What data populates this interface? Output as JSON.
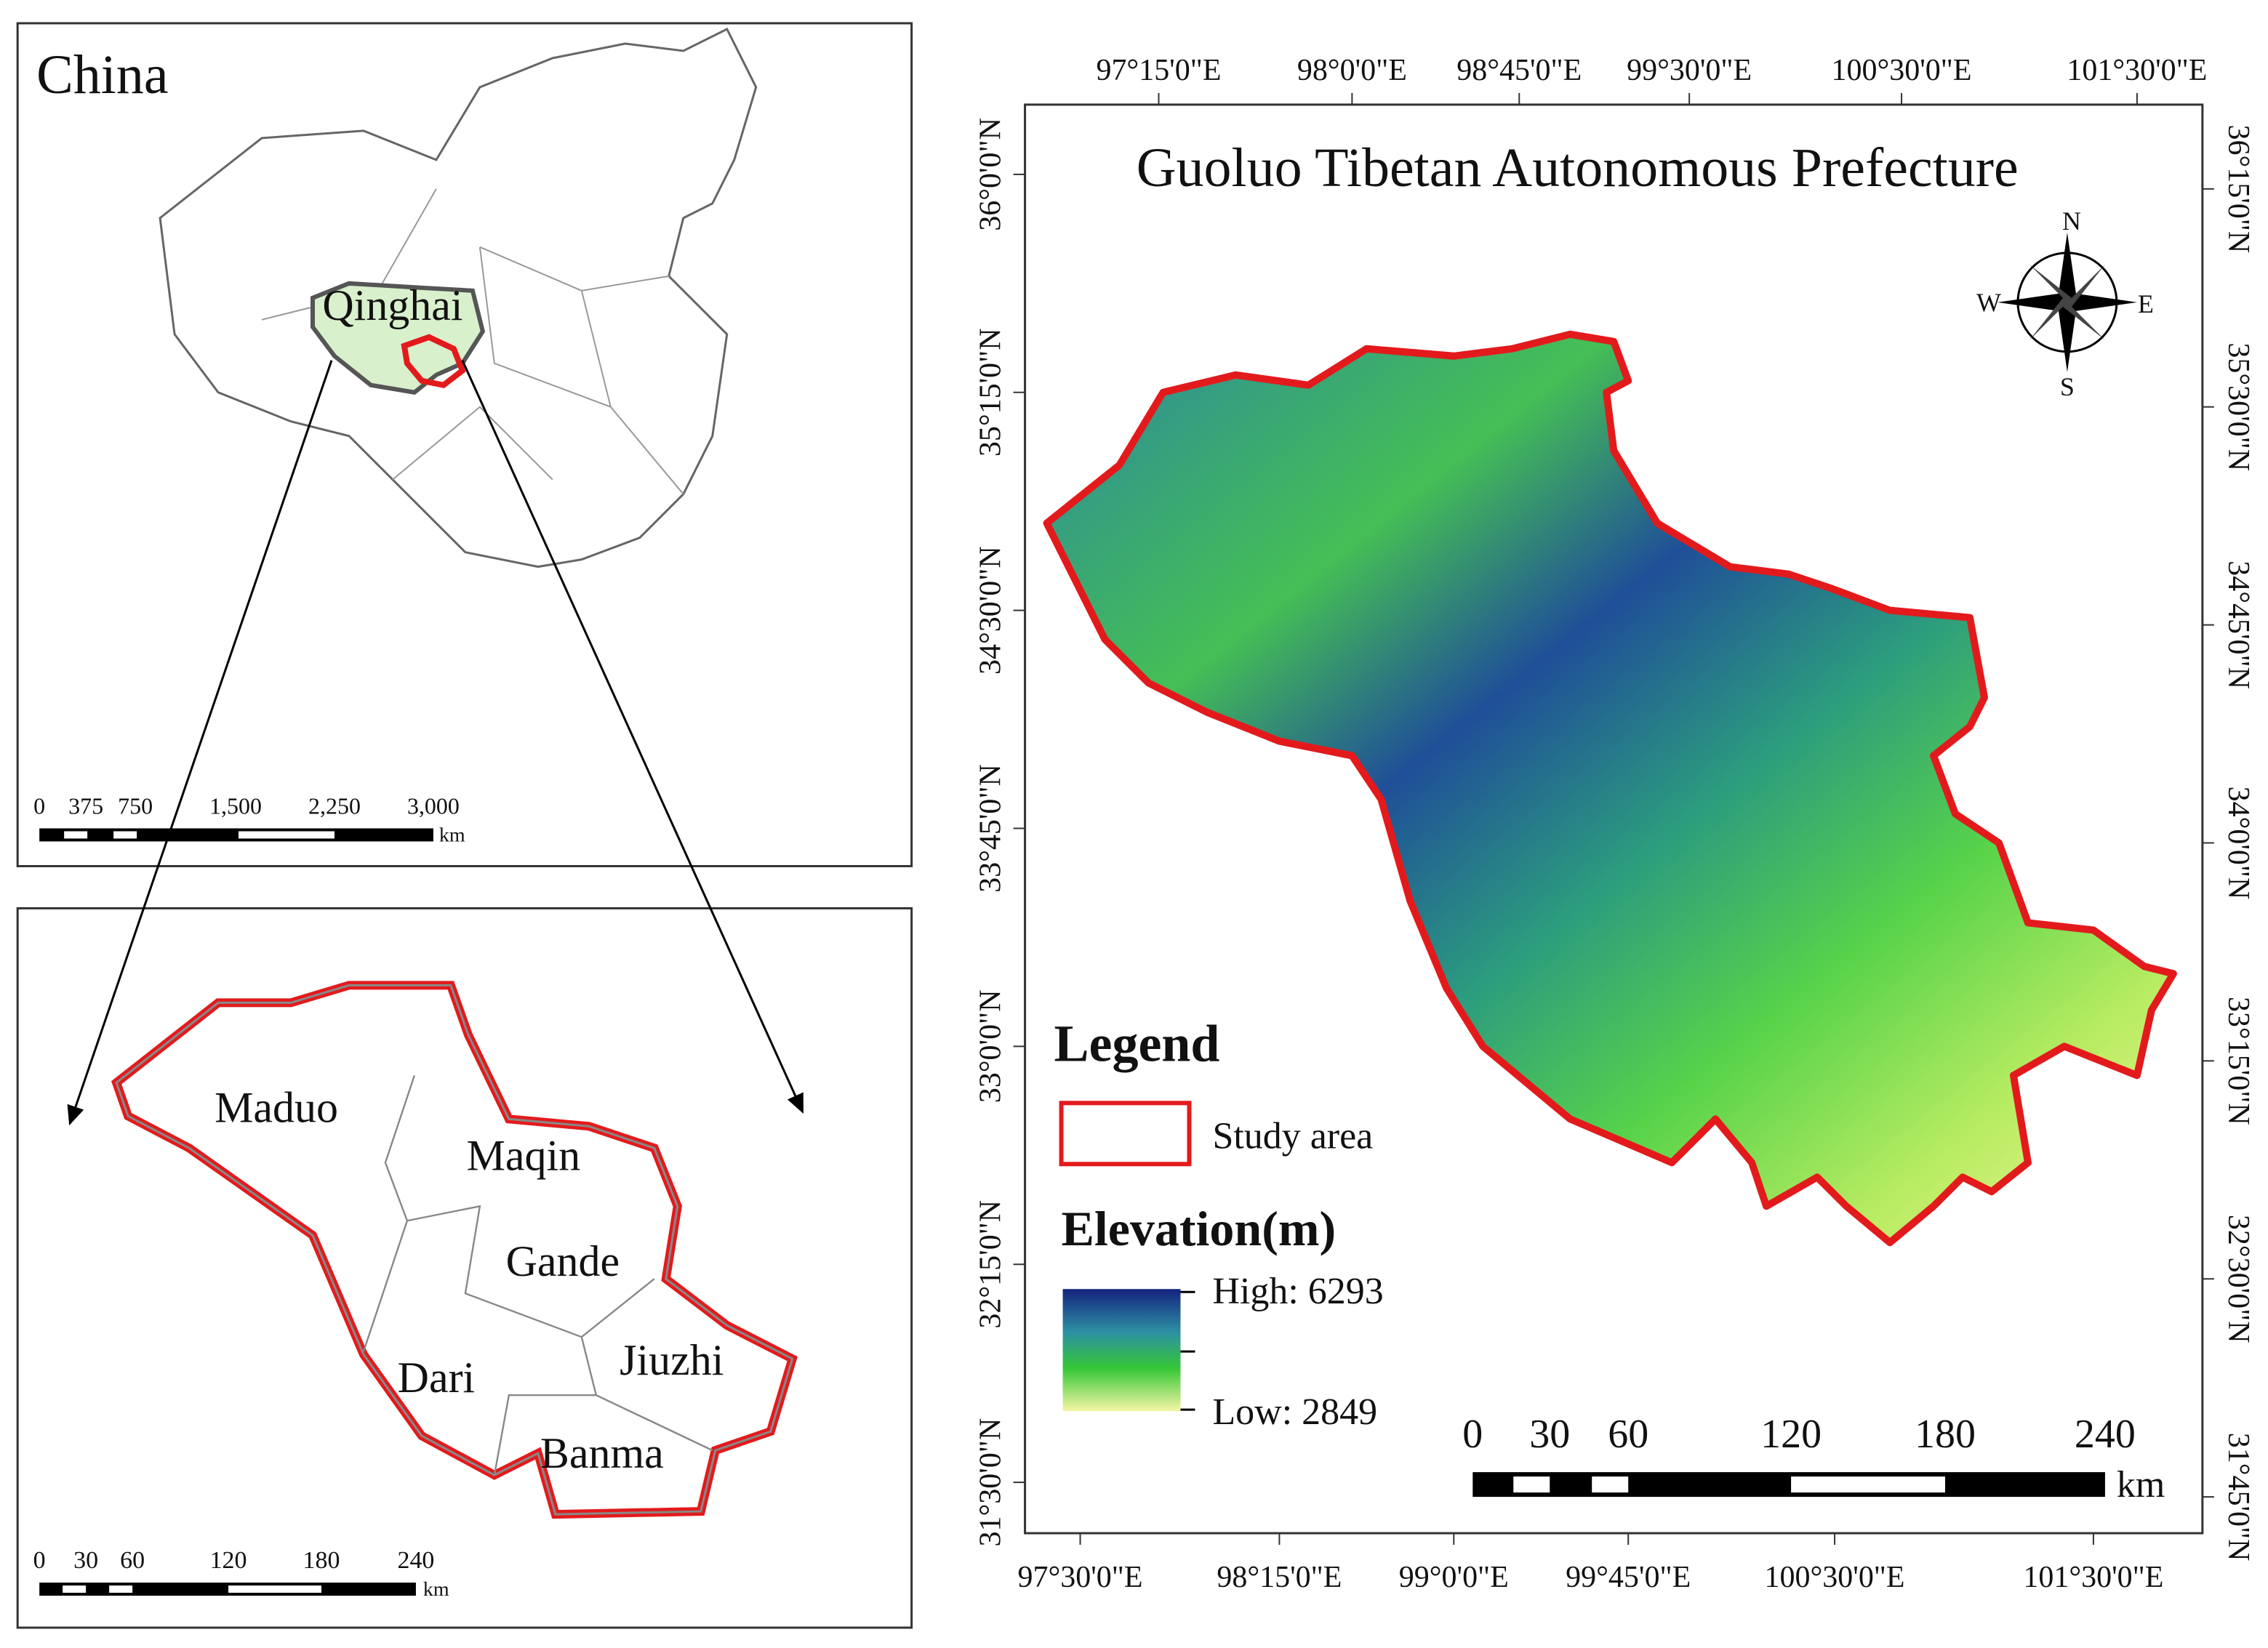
{
  "china_panel": {
    "title": "China",
    "province_label": "Qinghai",
    "scale": {
      "labels": [
        "0",
        "375",
        "750",
        "1,500",
        "2,250",
        "3,000"
      ],
      "unit": "km"
    }
  },
  "county_panel": {
    "counties": [
      "Maduo",
      "Maqin",
      "Gande",
      "Jiuzhi",
      "Dari",
      "Banma"
    ],
    "scale": {
      "labels": [
        "0",
        "30",
        "60",
        "120",
        "180",
        "240"
      ],
      "unit": "km"
    }
  },
  "main_map": {
    "title": "Guoluo Tibetan Autonomous Prefecture",
    "top_longitudes": [
      "97°15'0\"E",
      "98°0'0\"E",
      "98°45'0\"E",
      "99°30'0\"E",
      "100°30'0\"E",
      "101°30'0\"E"
    ],
    "bottom_longitudes": [
      "97°30'0\"E",
      "98°15'0\"E",
      "99°0'0\"E",
      "99°45'0\"E",
      "100°30'0\"E",
      "101°30'0\"E"
    ],
    "left_latitudes": [
      "36°0'0\"N",
      "35°15'0\"N",
      "34°30'0\"N",
      "33°45'0\"N",
      "33°0'0\"N",
      "32°15'0\"N",
      "31°30'0\"N"
    ],
    "right_latitudes": [
      "36°15'0\"N",
      "35°30'0\"N",
      "34°45'0\"N",
      "34°0'0\"N",
      "33°15'0\"N",
      "32°30'0\"N",
      "31°45'0\"N"
    ],
    "compass": {
      "north": "N",
      "south": "S",
      "east": "E",
      "west": "W"
    },
    "legend": {
      "title": "Legend",
      "study_area": "Study area",
      "elevation_title": "Elevation(m)",
      "high": "High: 6293",
      "low": "Low: 2849"
    },
    "scale": {
      "labels": [
        "0",
        "30",
        "60",
        "120",
        "180",
        "240"
      ],
      "unit": "km"
    }
  }
}
